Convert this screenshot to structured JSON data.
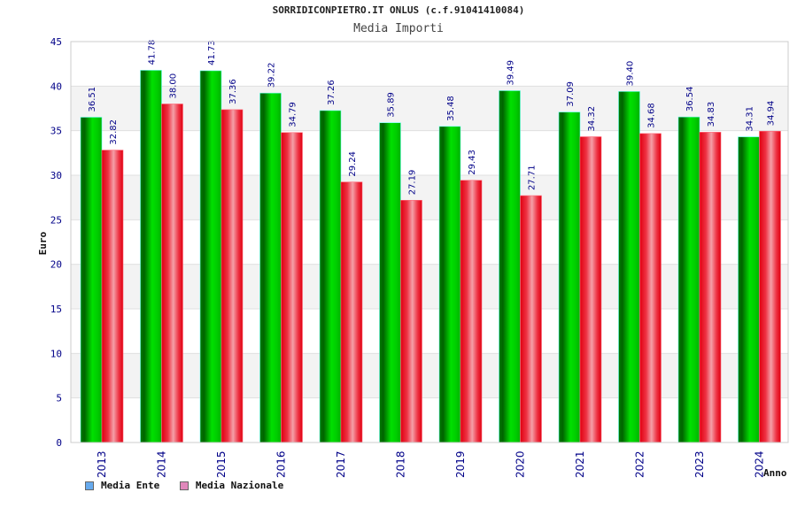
{
  "chart_data": {
    "type": "bar",
    "title": "SORRIDICONPIETRO.IT ONLUS (c.f.91041410084)",
    "subtitle": "Media Importi",
    "xlabel": "Anno",
    "ylabel": "Euro",
    "ylim": [
      0,
      45
    ],
    "yticks": [
      0,
      5,
      10,
      15,
      20,
      25,
      30,
      35,
      40,
      45
    ],
    "categories": [
      "2013",
      "2014",
      "2015",
      "2016",
      "2017",
      "2018",
      "2019",
      "2020",
      "2021",
      "2022",
      "2023",
      "2024"
    ],
    "series": [
      {
        "name": "Media Ente",
        "values": [
          36.51,
          41.78,
          41.73,
          39.22,
          37.26,
          35.89,
          35.48,
          39.49,
          37.09,
          39.4,
          36.54,
          34.31
        ],
        "labels": [
          "36.51",
          "41.78",
          "41.73",
          "39.22",
          "37.26",
          "35.89",
          "35.48",
          "39.49",
          "37.09",
          "39.40",
          "36.54",
          "34.31"
        ],
        "color": "#00cc00",
        "legend_color": "#66aaee"
      },
      {
        "name": "Media Nazionale",
        "values": [
          32.82,
          38.0,
          37.36,
          34.79,
          29.24,
          27.19,
          29.43,
          27.71,
          34.32,
          34.68,
          34.83,
          34.94
        ],
        "labels": [
          "32.82",
          "38.00",
          "37.36",
          "34.79",
          "29.24",
          "27.19",
          "29.43",
          "27.71",
          "34.32",
          "34.68",
          "34.83",
          "34.94"
        ],
        "color": "#ee1122",
        "legend_color": "#e088bb"
      }
    ],
    "grid": true,
    "legend_position": "bottom-left"
  }
}
